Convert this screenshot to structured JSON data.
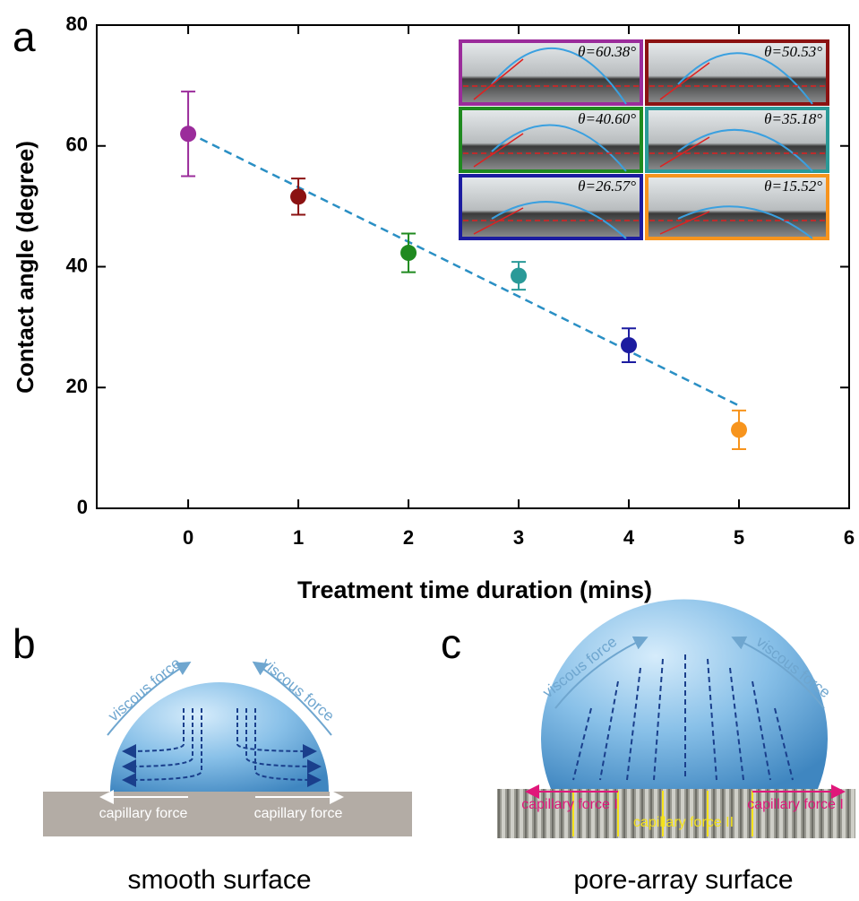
{
  "chart_data": {
    "type": "scatter",
    "xlabel": "Treatment time duration (mins)",
    "ylabel": "Contact angle (degree)",
    "x": [
      0,
      1,
      2,
      3,
      4,
      5
    ],
    "series": [
      {
        "values": [
          62,
          51.6,
          42.3,
          38.5,
          27,
          13
        ],
        "errors": [
          7,
          3,
          3.2,
          2.3,
          2.8,
          3.2
        ],
        "colors": [
          "#9b2c9b",
          "#8b1212",
          "#1f8a1f",
          "#2a9a98",
          "#1c1ca0",
          "#f7941d"
        ]
      }
    ],
    "fit": {
      "x": [
        0,
        5
      ],
      "values": [
        62.2,
        17
      ],
      "color": "#2a8fc4"
    },
    "insets": [
      "θ=60.38°",
      "θ=50.53°",
      "θ=40.60°",
      "θ=35.18°",
      "θ=26.57°",
      "θ=15.52°"
    ],
    "xlim": [
      -0.83,
      6
    ],
    "ylim": [
      0,
      80
    ],
    "xticks": [
      0,
      1,
      2,
      3,
      4,
      5,
      6
    ],
    "yticks": [
      0,
      20,
      40,
      60,
      80
    ]
  },
  "panel_labels": [
    "a",
    "b",
    "c"
  ],
  "panel_b": {
    "viscous_left": "viscous force",
    "viscous_right": "viscous force",
    "capillary_left": "capillary force",
    "capillary_right": "capillary force",
    "caption": "smooth surface"
  },
  "panel_c": {
    "viscous_left": "viscous force",
    "viscous_right": "viscous force",
    "capillary_1_left": "capillary force I",
    "capillary_1_right": "capillary force I",
    "capillary_2": "capillary force II",
    "caption": "pore-array surface"
  }
}
